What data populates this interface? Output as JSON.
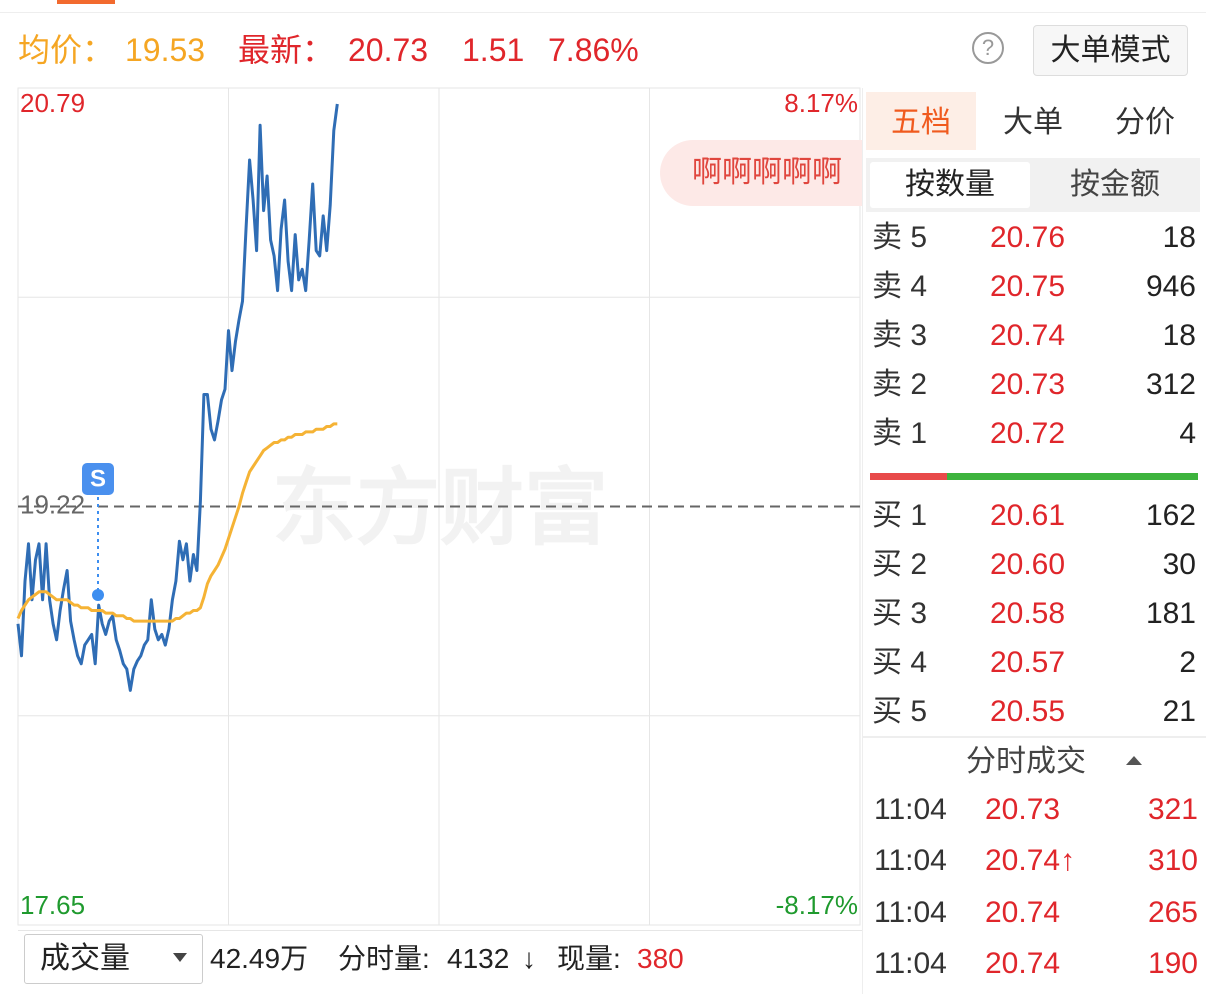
{
  "header": {
    "avg_label": "均价：",
    "avg": "19.53",
    "latest_label": "最新：",
    "latest": "20.73",
    "change": "1.51",
    "change_pct": "7.86%",
    "help": "?",
    "mode_button": "大单模式"
  },
  "chart_data": {
    "type": "line",
    "watermark": "东方财富",
    "annotation": "S",
    "bubble": "啊啊啊啊啊",
    "ylim": [
      17.65,
      20.79
    ],
    "yticks": [
      17.65,
      19.22,
      20.79
    ],
    "y2lim": [
      -8.17,
      8.17
    ],
    "y2ticks": [
      {
        "value": -8.17,
        "label": "-8.17%"
      },
      {
        "value": 8.17,
        "label": "8.17%"
      }
    ],
    "series": [
      {
        "color": "#2f6db5",
        "values": [
          18.78,
          18.66,
          18.94,
          19.08,
          18.87,
          19.02,
          19.08,
          18.87,
          19.08,
          18.87,
          18.78,
          18.72,
          18.83,
          18.91,
          18.98,
          18.79,
          18.72,
          18.66,
          18.63,
          18.7,
          18.72,
          18.74,
          18.63,
          18.85,
          18.78,
          18.74,
          18.79,
          18.81,
          18.72,
          18.68,
          18.63,
          18.61,
          18.53,
          18.61,
          18.64,
          18.66,
          18.7,
          18.72,
          18.87,
          18.76,
          18.72,
          18.74,
          18.7,
          18.76,
          18.87,
          18.94,
          19.09,
          19.02,
          19.08,
          18.94,
          19.04,
          18.98,
          19.24,
          19.64,
          19.64,
          19.51,
          19.47,
          19.54,
          19.62,
          19.66,
          19.88,
          19.73,
          19.84,
          19.92,
          19.99,
          20.26,
          20.52,
          20.37,
          20.18,
          20.65,
          20.33,
          20.46,
          20.22,
          20.16,
          20.03,
          20.26,
          20.37,
          20.14,
          20.03,
          20.24,
          20.07,
          20.11,
          20.03,
          20.22,
          20.43,
          20.18,
          20.16,
          20.31,
          20.18,
          20.35,
          20.63,
          20.73
        ]
      },
      {
        "color": "#f5b335",
        "values": [
          18.8,
          18.83,
          18.85,
          18.87,
          18.88,
          18.89,
          18.9,
          18.9,
          18.9,
          18.89,
          18.88,
          18.87,
          18.87,
          18.87,
          18.87,
          18.86,
          18.85,
          18.85,
          18.84,
          18.84,
          18.84,
          18.83,
          18.83,
          18.83,
          18.83,
          18.82,
          18.82,
          18.82,
          18.81,
          18.81,
          18.81,
          18.8,
          18.8,
          18.79,
          18.79,
          18.79,
          18.79,
          18.79,
          18.79,
          18.79,
          18.79,
          18.79,
          18.79,
          18.79,
          18.79,
          18.8,
          18.8,
          18.81,
          18.82,
          18.82,
          18.83,
          18.83,
          18.84,
          18.88,
          18.93,
          18.96,
          18.98,
          19.0,
          19.03,
          19.06,
          19.1,
          19.14,
          19.18,
          19.22,
          19.27,
          19.31,
          19.35,
          19.37,
          19.39,
          19.41,
          19.43,
          19.44,
          19.45,
          19.46,
          19.46,
          19.47,
          19.47,
          19.48,
          19.48,
          19.49,
          19.49,
          19.49,
          19.5,
          19.5,
          19.5,
          19.51,
          19.51,
          19.51,
          19.52,
          19.52,
          19.53,
          19.53
        ]
      }
    ]
  },
  "order_book": {
    "tabs": [
      "五档",
      "大单",
      "分价"
    ],
    "subtabs": [
      "按数量",
      "按金额"
    ],
    "sell": [
      {
        "label": "卖 5",
        "price": "20.76",
        "volume": 18
      },
      {
        "label": "卖 4",
        "price": "20.75",
        "volume": 946
      },
      {
        "label": "卖 3",
        "price": "20.74",
        "volume": 18
      },
      {
        "label": "卖 2",
        "price": "20.73",
        "volume": 312
      },
      {
        "label": "卖 1",
        "price": "20.72",
        "volume": 4
      }
    ],
    "buy": [
      {
        "label": "买 1",
        "price": "20.61",
        "volume": 162
      },
      {
        "label": "买 2",
        "price": "20.60",
        "volume": 30
      },
      {
        "label": "买 3",
        "price": "20.58",
        "volume": 181
      },
      {
        "label": "买 4",
        "price": "20.57",
        "volume": 2
      },
      {
        "label": "买 5",
        "price": "20.55",
        "volume": 21
      }
    ]
  },
  "trades": {
    "title": "分时成交",
    "rows": [
      {
        "time": "11:04",
        "price": "20.73",
        "volume": 321
      },
      {
        "time": "11:04",
        "price": "20.74↑",
        "volume": 310
      },
      {
        "time": "11:04",
        "price": "20.74",
        "volume": 265
      },
      {
        "time": "11:04",
        "price": "20.74",
        "volume": 190
      }
    ]
  },
  "volume_bar": {
    "selector": "成交量",
    "total": "42.49万",
    "minute_label": "分时量:",
    "minute_volume": "4132",
    "arrow": "↓",
    "current_label": "现量:",
    "current": "380"
  }
}
